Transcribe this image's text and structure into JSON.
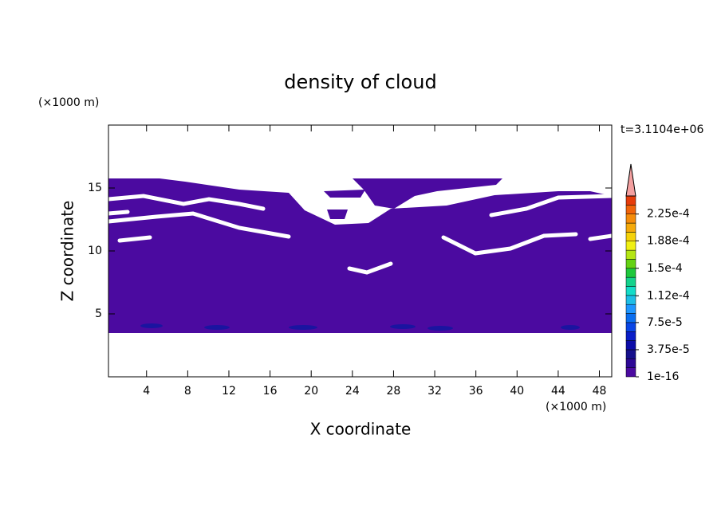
{
  "chart_data": {
    "type": "contour",
    "title": "density of cloud",
    "x_label": "X coordinate",
    "y_label": "Z coordinate",
    "x_unit": "(×1000 m)",
    "y_unit": "(×1000 m)",
    "time_label": "t=3.1104e+06",
    "xlim": [
      0.3,
      49.2
    ],
    "xticks": [
      4,
      8,
      12,
      16,
      20,
      24,
      28,
      32,
      36,
      40,
      44,
      48
    ],
    "ylim": [
      0,
      20
    ],
    "yticks": [
      5,
      10,
      15
    ],
    "fill_color": "#4b0aa0",
    "colorbar": {
      "lim": [
        0,
        0.00025
      ],
      "ticks": [
        1e-16,
        {
          "value": 3.75e-05,
          "label": "3.75e-5"
        },
        {
          "value": 7.5e-05,
          "label": "7.5e-5"
        },
        {
          "value": 0.000112,
          "label": "1.12e-4"
        },
        {
          "value": 0.00015,
          "label": "1.5e-4"
        },
        {
          "value": 0.000188,
          "label": "1.88e-4"
        },
        {
          "value": 0.000225,
          "label": "2.25e-4"
        }
      ],
      "colors": [
        "#4b0aa0",
        "#2d0896",
        "#16108c",
        "#0c0ca8",
        "#0a1ec8",
        "#0a46e6",
        "#0a6ef0",
        "#1e96ff",
        "#1ebee6",
        "#14dcc8",
        "#14d28c",
        "#1ec83c",
        "#64d214",
        "#b4e614",
        "#f0f014",
        "#f5d20a",
        "#f5aa0a",
        "#f58c0a",
        "#f0640a",
        "#e63c0a"
      ],
      "over_color": "#f4a0a0"
    }
  }
}
